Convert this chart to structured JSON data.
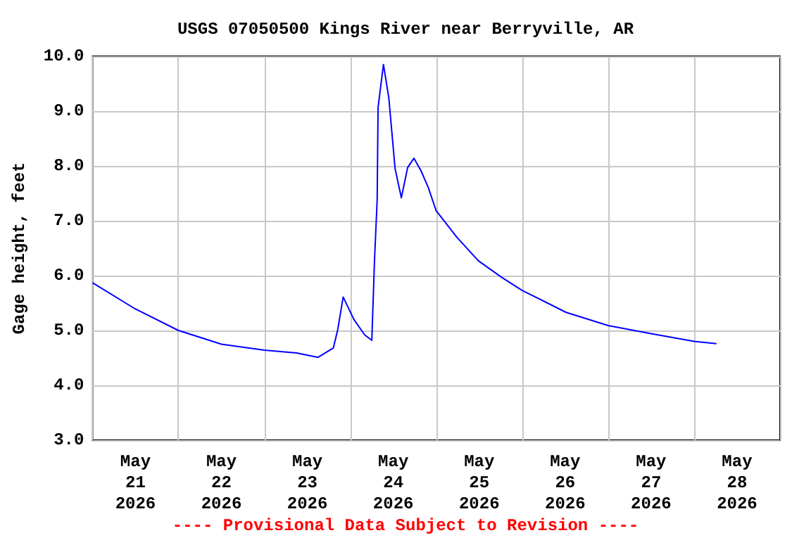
{
  "chart_data": {
    "type": "line",
    "title": "USGS 07050500 Kings River near Berryville, AR",
    "ylabel": "Gage height, feet",
    "annotations": [
      "---- Provisional Data Subject to Revision ----"
    ],
    "x": [
      "2026-05-21T00:00",
      "2026-05-21T11:30",
      "2026-05-22T00:00",
      "2026-05-22T12:00",
      "2026-05-23T00:00",
      "2026-05-23T09:00",
      "2026-05-23T15:00",
      "2026-05-23T19:15",
      "2026-05-23T20:30",
      "2026-05-23T22:00",
      "2026-05-24T01:00",
      "2026-05-24T04:00",
      "2026-05-24T06:00",
      "2026-05-24T06:45",
      "2026-05-24T07:30",
      "2026-05-24T07:45",
      "2026-05-24T09:15",
      "2026-05-24T10:45",
      "2026-05-24T12:30",
      "2026-05-24T14:15",
      "2026-05-24T16:00",
      "2026-05-24T17:45",
      "2026-05-24T19:45",
      "2026-05-24T21:45",
      "2026-05-24T23:15",
      "2026-05-25T00:00",
      "2026-05-25T05:45",
      "2026-05-25T11:45",
      "2026-05-25T18:15",
      "2026-05-26T00:00",
      "2026-05-26T12:15",
      "2026-05-27T00:00",
      "2026-05-27T12:15",
      "2026-05-28T00:00",
      "2026-05-28T06:15"
    ],
    "series": [
      {
        "color": "#0000ff",
        "values": [
          5.87,
          5.41,
          5.0,
          4.75,
          4.64,
          4.59,
          4.51,
          4.68,
          5.02,
          5.61,
          5.2,
          4.92,
          4.82,
          6.27,
          7.39,
          9.07,
          9.85,
          9.24,
          7.95,
          7.42,
          7.97,
          8.14,
          7.91,
          7.61,
          7.32,
          7.18,
          6.7,
          6.27,
          5.97,
          5.73,
          5.33,
          5.09,
          4.94,
          4.8,
          4.76
        ]
      }
    ],
    "xlim": [
      "2026-05-21T00:00",
      "2026-05-29T00:00"
    ],
    "xticks": [
      {
        "value": "2026-05-21T00:00",
        "label": null
      },
      {
        "value": "2026-05-21T12:00",
        "label": "May\n21\n2026"
      },
      {
        "value": "2026-05-22T00:00",
        "label": null
      },
      {
        "value": "2026-05-22T12:00",
        "label": "May\n22\n2026"
      },
      {
        "value": "2026-05-23T00:00",
        "label": null
      },
      {
        "value": "2026-05-23T12:00",
        "label": "May\n23\n2026"
      },
      {
        "value": "2026-05-24T00:00",
        "label": null
      },
      {
        "value": "2026-05-24T12:00",
        "label": "May\n24\n2026"
      },
      {
        "value": "2026-05-25T00:00",
        "label": null
      },
      {
        "value": "2026-05-25T12:00",
        "label": "May\n25\n2026"
      },
      {
        "value": "2026-05-26T00:00",
        "label": null
      },
      {
        "value": "2026-05-26T12:00",
        "label": "May\n26\n2026"
      },
      {
        "value": "2026-05-27T00:00",
        "label": null
      },
      {
        "value": "2026-05-27T12:00",
        "label": "May\n27\n2026"
      },
      {
        "value": "2026-05-28T00:00",
        "label": null
      },
      {
        "value": "2026-05-28T12:00",
        "label": "May\n28\n2026"
      },
      {
        "value": "2026-05-29T00:00",
        "label": null
      }
    ],
    "ylim": [
      3,
      10
    ],
    "yticks": [
      {
        "value": 3,
        "label": "3.0"
      },
      {
        "value": 4,
        "label": "4.0"
      },
      {
        "value": 5,
        "label": "5.0"
      },
      {
        "value": 6,
        "label": "6.0"
      },
      {
        "value": 7,
        "label": "7.0"
      },
      {
        "value": 8,
        "label": "8.0"
      },
      {
        "value": 9,
        "label": "9.0"
      },
      {
        "value": 10,
        "label": "10.0"
      }
    ],
    "grid": true,
    "marker": "none",
    "line_style": "solid"
  }
}
